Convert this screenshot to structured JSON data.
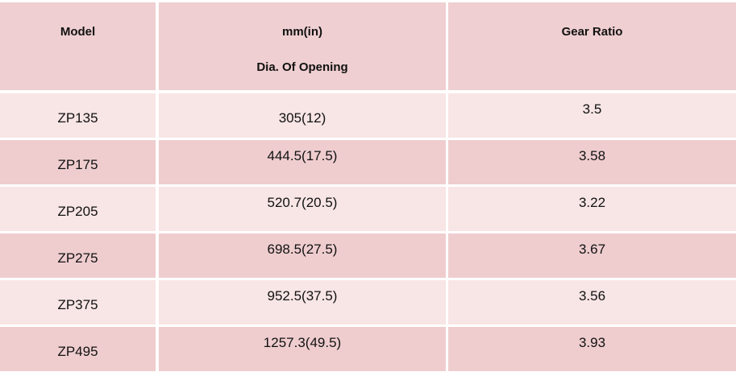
{
  "table": {
    "header": [
      "Model",
      [
        "mm(in)",
        "Dia. Of Opening"
      ],
      "Gear Ratio"
    ],
    "rows": [
      [
        "ZP135",
        "305(12)",
        "3.5"
      ],
      [
        "ZP175",
        "444.5(17.5)",
        "3.58"
      ],
      [
        "ZP205",
        "520.7(20.5)",
        "3.22"
      ],
      [
        "ZP275",
        "698.5(27.5)",
        "3.67"
      ],
      [
        "ZP375",
        "952.5(37.5)",
        "3.56"
      ],
      [
        "ZP495",
        "1257.3(49.5)",
        "3.93"
      ]
    ]
  }
}
